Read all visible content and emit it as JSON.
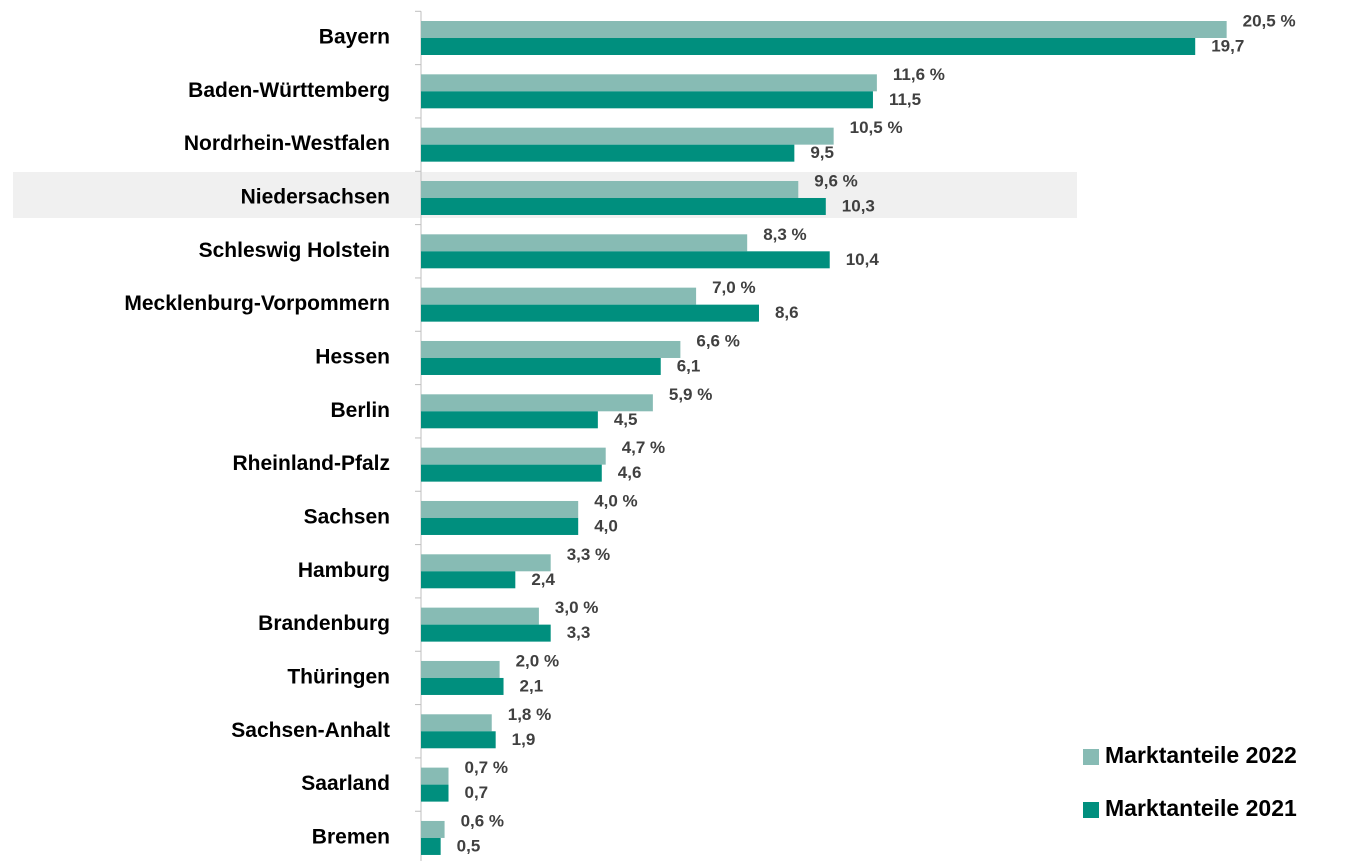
{
  "chart_data": {
    "type": "bar",
    "orientation": "horizontal",
    "categories": [
      "Bayern",
      "Baden-Württemberg",
      "Nordrhein-Westfalen",
      "Niedersachsen",
      "Schleswig Holstein",
      "Mecklenburg-Vorpommern",
      "Hessen",
      "Berlin",
      "Rheinland-Pfalz",
      "Sachsen",
      "Hamburg",
      "Brandenburg",
      "Thüringen",
      "Sachsen-Anhalt",
      "Saarland",
      "Bremen"
    ],
    "series": [
      {
        "name": "Marktanteile 2022",
        "color": "#87bbb4",
        "values": [
          20.5,
          11.6,
          10.5,
          9.6,
          8.3,
          7.0,
          6.6,
          5.9,
          4.7,
          4.0,
          3.3,
          3.0,
          2.0,
          1.8,
          0.7,
          0.6
        ],
        "value_labels": [
          "20,5 %",
          "11,6 %",
          "10,5 %",
          "9,6 %",
          "8,3 %",
          "7,0 %",
          "6,6 %",
          "5,9 %",
          "4,7 %",
          "4,0 %",
          "3,3 %",
          "3,0 %",
          "2,0 %",
          "1,8 %",
          "0,7 %",
          "0,6 %"
        ]
      },
      {
        "name": "Marktanteile 2021",
        "color": "#008f7e",
        "values": [
          19.7,
          11.5,
          9.5,
          10.3,
          10.4,
          8.6,
          6.1,
          4.5,
          4.6,
          4.0,
          2.4,
          3.3,
          2.1,
          1.9,
          0.7,
          0.5
        ],
        "value_labels": [
          "19,7",
          "11,5",
          "9,5",
          "10,3",
          "10,4",
          "8,6",
          "6,1",
          "4,5",
          "4,6",
          "4,0",
          "2,4",
          "3,3",
          "2,1",
          "1,9",
          "0,7",
          "0,5"
        ]
      }
    ],
    "xlim": [
      0,
      22
    ],
    "legend": "lower right"
  }
}
